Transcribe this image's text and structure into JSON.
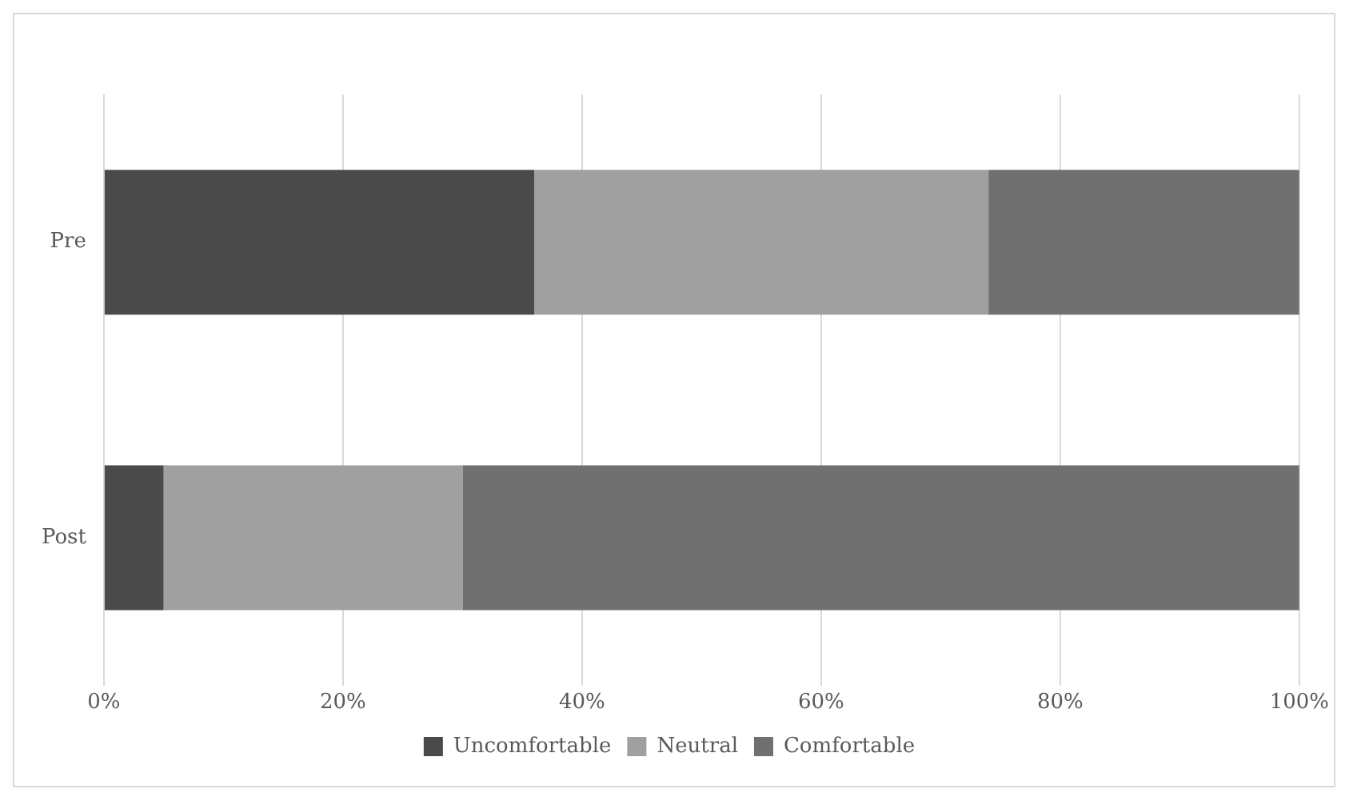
{
  "chart_data": {
    "type": "bar",
    "orientation": "horizontal",
    "stacked": true,
    "categories": [
      "Pre",
      "Post"
    ],
    "series": [
      {
        "name": "Uncomfortable",
        "color": "#4a4a4a",
        "values": [
          36,
          5
        ]
      },
      {
        "name": "Neutral",
        "color": "#a0a0a0",
        "values": [
          38,
          25
        ]
      },
      {
        "name": "Comfortable",
        "color": "#707070",
        "values": [
          26,
          70
        ]
      }
    ],
    "xlim": [
      0,
      100
    ],
    "xticks": [
      {
        "value": 0,
        "label": "0%"
      },
      {
        "value": 20,
        "label": "20%"
      },
      {
        "value": 40,
        "label": "40%"
      },
      {
        "value": 60,
        "label": "60%"
      },
      {
        "value": 80,
        "label": "80%"
      },
      {
        "value": 100,
        "label": "100%"
      }
    ],
    "grid": "x",
    "legend": "bottom"
  }
}
